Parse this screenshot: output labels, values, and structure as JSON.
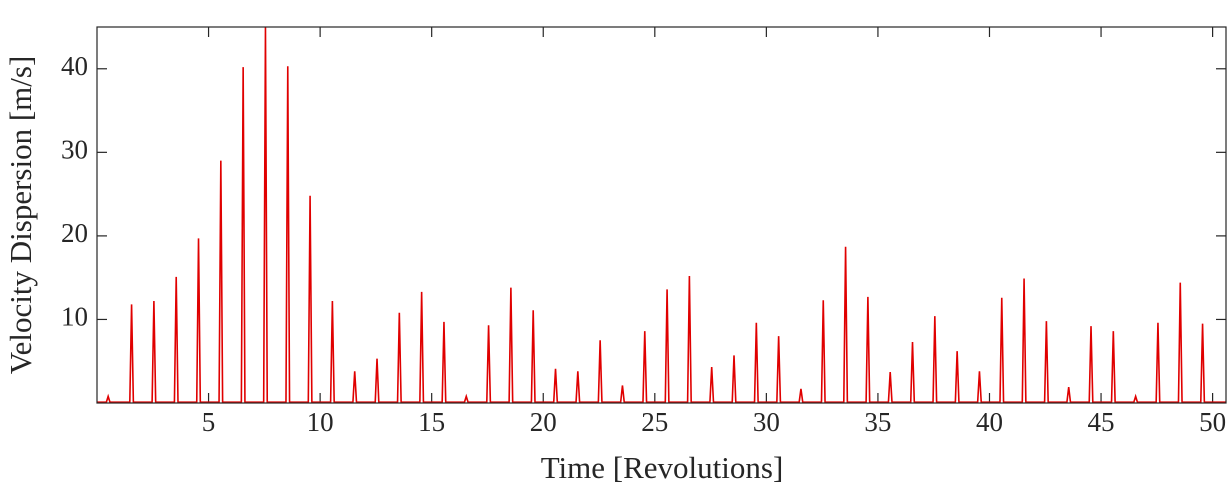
{
  "chart_data": {
    "type": "line",
    "x_label": "Time [Revolutions]",
    "y_label": "Velocity Dispersion [m/s]",
    "color": "#e00000",
    "xlim": [
      0,
      50.6
    ],
    "ylim": [
      0,
      45
    ],
    "xticks": [
      5,
      10,
      15,
      20,
      25,
      30,
      35,
      40,
      45,
      50
    ],
    "yticks": [
      10,
      20,
      30,
      40
    ],
    "x": [
      0,
      0.42,
      0.5,
      0.58,
      1.47,
      1.55,
      1.63,
      2.47,
      2.55,
      2.63,
      3.47,
      3.55,
      3.63,
      4.47,
      4.55,
      4.63,
      5.47,
      5.55,
      5.63,
      6.47,
      6.55,
      6.63,
      7.47,
      7.55,
      7.63,
      8.47,
      8.55,
      8.63,
      9.47,
      9.55,
      9.63,
      10.47,
      10.55,
      10.63,
      11.47,
      11.55,
      11.63,
      12.47,
      12.55,
      12.63,
      13.47,
      13.55,
      13.63,
      14.47,
      14.55,
      14.63,
      15.47,
      15.55,
      15.63,
      16.47,
      16.55,
      16.63,
      17.47,
      17.55,
      17.63,
      18.47,
      18.55,
      18.63,
      19.47,
      19.55,
      19.63,
      20.47,
      20.55,
      20.63,
      21.47,
      21.55,
      21.63,
      22.47,
      22.55,
      22.63,
      23.47,
      23.55,
      23.63,
      24.47,
      24.55,
      24.63,
      25.47,
      25.55,
      25.63,
      26.47,
      26.55,
      26.63,
      27.47,
      27.55,
      27.63,
      28.47,
      28.55,
      28.63,
      29.47,
      29.55,
      29.63,
      30.47,
      30.55,
      30.63,
      31.47,
      31.55,
      31.63,
      32.47,
      32.55,
      32.63,
      33.47,
      33.55,
      33.63,
      34.47,
      34.55,
      34.63,
      35.47,
      35.55,
      35.63,
      36.47,
      36.55,
      36.63,
      37.47,
      37.55,
      37.63,
      38.47,
      38.55,
      38.63,
      39.47,
      39.55,
      39.63,
      40.47,
      40.55,
      40.63,
      41.47,
      41.55,
      41.63,
      42.47,
      42.55,
      42.63,
      43.47,
      43.55,
      43.63,
      44.47,
      44.55,
      44.63,
      45.47,
      45.55,
      45.63,
      46.47,
      46.55,
      46.63,
      47.47,
      47.55,
      47.63,
      48.47,
      48.55,
      48.63,
      49.47,
      49.55,
      49.63,
      50.6
    ],
    "values": [
      0.1,
      0.1,
      0.8,
      0.1,
      0.1,
      11.8,
      0.1,
      0.1,
      12.2,
      0.1,
      0.1,
      15.1,
      0.1,
      0.1,
      19.7,
      0.1,
      0.1,
      29,
      0.1,
      0.1,
      40.2,
      0.1,
      0.1,
      45,
      0.1,
      0.1,
      40.3,
      0.1,
      0.1,
      24.8,
      0.1,
      0.1,
      12.2,
      0.1,
      0.1,
      3.8,
      0.1,
      0.1,
      5.3,
      0.1,
      0.1,
      10.8,
      0.1,
      0.1,
      13.3,
      0.1,
      0.1,
      9.7,
      0.1,
      0.1,
      0.8,
      0.1,
      0.1,
      9.3,
      0.1,
      0.1,
      13.8,
      0.1,
      0.1,
      11.1,
      0.1,
      0.1,
      4.1,
      0.1,
      0.1,
      3.8,
      0.1,
      0.1,
      7.5,
      0.1,
      0.1,
      2.1,
      0.1,
      0.1,
      8.6,
      0.1,
      0.1,
      13.6,
      0.1,
      0.1,
      15.2,
      0.1,
      0.1,
      4.3,
      0.1,
      0.1,
      5.7,
      0.1,
      0.1,
      9.6,
      0.1,
      0.1,
      8,
      0.1,
      0.1,
      1.7,
      0.1,
      0.1,
      12.3,
      0.1,
      0.1,
      18.7,
      0.1,
      0.1,
      12.7,
      0.1,
      0.1,
      3.7,
      0.1,
      0.1,
      7.3,
      0.1,
      0.1,
      10.4,
      0.1,
      0.1,
      6.2,
      0.1,
      0.1,
      3.8,
      0.1,
      0.1,
      12.6,
      0.1,
      0.1,
      14.9,
      0.1,
      0.1,
      9.8,
      0.1,
      0.1,
      1.9,
      0.1,
      0.1,
      9.2,
      0.1,
      0.1,
      8.6,
      0.1,
      0.1,
      0.8,
      0.1,
      0.1,
      9.6,
      0.1,
      0.1,
      14.4,
      0.1,
      0.1,
      9.5,
      0.1,
      0.1
    ]
  }
}
